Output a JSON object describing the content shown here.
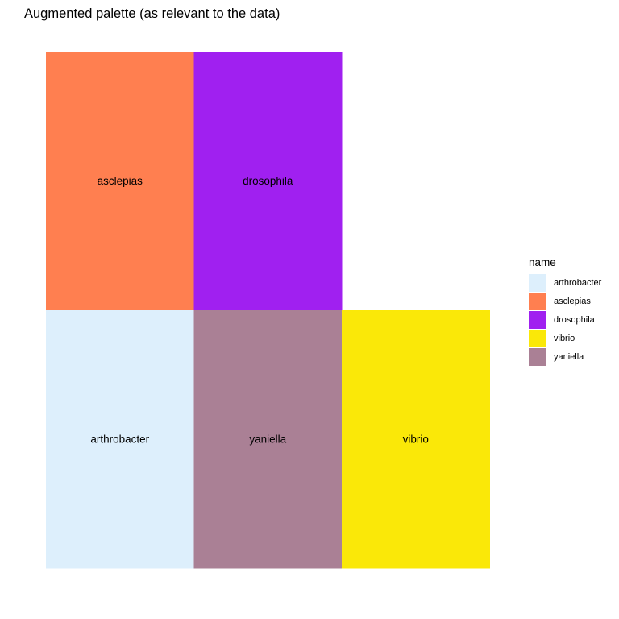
{
  "chart_data": {
    "type": "heatmap",
    "title": "Augmented palette (as relevant to the data)",
    "xlabel": "",
    "ylabel": "",
    "grid": false,
    "legend_position": "right",
    "legend_title": "name",
    "columns": 3,
    "rows": 2,
    "tiles": [
      {
        "name": "asclepias",
        "col": 1,
        "row": 2,
        "color": "#FF7F50"
      },
      {
        "name": "drosophila",
        "col": 2,
        "row": 2,
        "color": "#A020F0"
      },
      {
        "name": "arthrobacter",
        "col": 1,
        "row": 1,
        "color": "#DDEFFC"
      },
      {
        "name": "yaniella",
        "col": 2,
        "row": 1,
        "color": "#AA8095"
      },
      {
        "name": "vibrio",
        "col": 3,
        "row": 1,
        "color": "#FAE808"
      }
    ],
    "legend": [
      {
        "name": "arthrobacter",
        "color": "#DDEFFC"
      },
      {
        "name": "asclepias",
        "color": "#FF7F50"
      },
      {
        "name": "drosophila",
        "color": "#A020F0"
      },
      {
        "name": "vibrio",
        "color": "#FAE808"
      },
      {
        "name": "yaniella",
        "color": "#AA8095"
      }
    ]
  }
}
